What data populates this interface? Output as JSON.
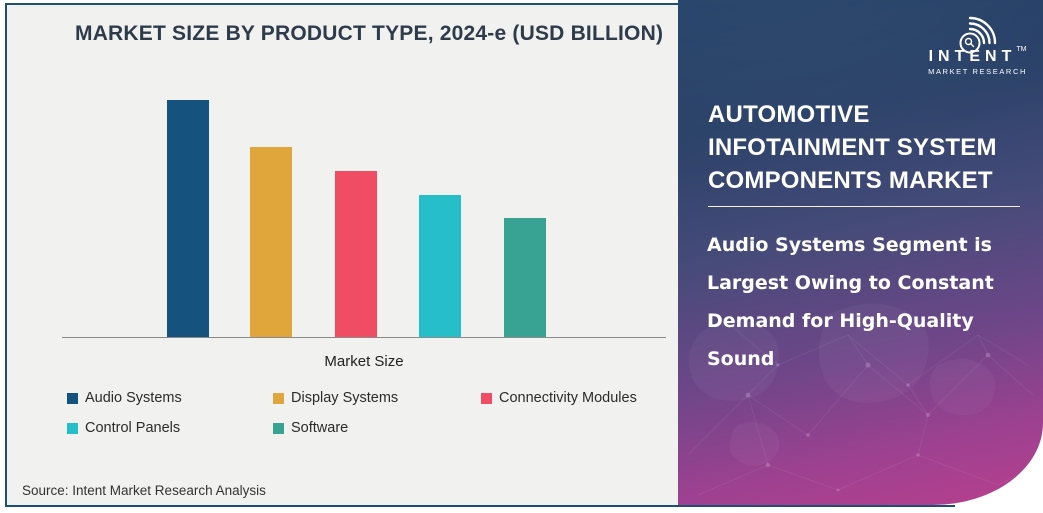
{
  "chart": {
    "title": "MARKET SIZE BY PRODUCT TYPE, 2024-e (USD BILLION)",
    "xlabel": "Market Size",
    "source": "Source: Intent Market Research Analysis",
    "series": [
      {
        "label": "Audio Systems",
        "color": "#15537e",
        "value": 100
      },
      {
        "label": "Display Systems",
        "color": "#e0a63c",
        "value": 80
      },
      {
        "label": "Connectivity Modules",
        "color": "#f04d64",
        "value": 70
      },
      {
        "label": "Control Panels",
        "color": "#26bec9",
        "value": 60
      },
      {
        "label": "Software",
        "color": "#38a392",
        "value": 50
      }
    ]
  },
  "chart_data": {
    "type": "bar",
    "title": "MARKET SIZE BY PRODUCT TYPE, 2024-e (USD BILLION)",
    "unit": "USD Billion",
    "categories": [
      "Audio Systems",
      "Display Systems",
      "Connectivity Modules",
      "Control Panels",
      "Software"
    ],
    "values_relative_pct": [
      100,
      80,
      70,
      60,
      50
    ],
    "note": "No numeric y-axis shown; values are relative bar heights (tallest = 100)",
    "colors": [
      "#15537e",
      "#e0a63c",
      "#f04d64",
      "#26bec9",
      "#38a392"
    ],
    "xlabel": "Market Size",
    "ylabel": "",
    "grid": false,
    "value_labels_shown": false,
    "legend_position": "bottom"
  },
  "panel": {
    "logo": {
      "brand": "INTENT",
      "tm": "TM",
      "sub": "MARKET RESEARCH"
    },
    "title_lines": [
      "AUTOMOTIVE",
      "INFOTAINMENT SYSTEM",
      "COMPONENTS MARKET"
    ],
    "subtitle_lines": [
      "Audio Systems Segment is",
      "Largest Owing to Constant",
      "Demand for High-Quality",
      "Sound"
    ],
    "colors": {
      "gradient_top": "#203e65",
      "gradient_mid": "#6f4689",
      "gradient_bottom": "#b8408e"
    }
  },
  "frame": {
    "border_color": "#1c4e78",
    "chart_bg": "#f1f1ef"
  }
}
